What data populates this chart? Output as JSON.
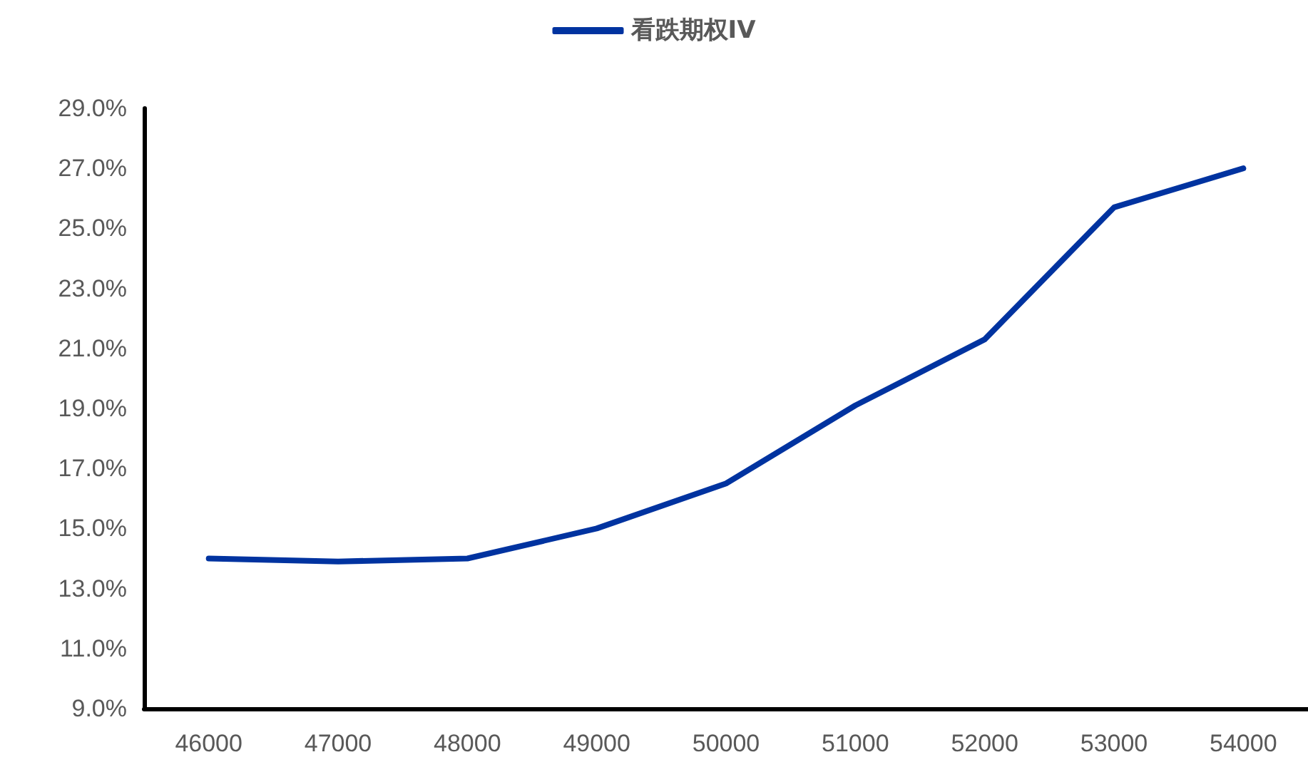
{
  "chart_data": {
    "type": "line",
    "categories": [
      "46000",
      "47000",
      "48000",
      "49000",
      "50000",
      "51000",
      "52000",
      "53000",
      "54000"
    ],
    "series": [
      {
        "name": "看跌期权IV",
        "color": "#0033a0",
        "values": [
          14.0,
          13.9,
          14.0,
          15.0,
          16.5,
          19.1,
          21.3,
          25.7,
          27.0
        ]
      }
    ],
    "ylim": [
      9,
      29
    ],
    "yticks": [
      {
        "value": 9,
        "label": "9.0%"
      },
      {
        "value": 11,
        "label": "11.0%"
      },
      {
        "value": 13,
        "label": "13.0%"
      },
      {
        "value": 15,
        "label": "15.0%"
      },
      {
        "value": 17,
        "label": "17.0%"
      },
      {
        "value": 19,
        "label": "19.0%"
      },
      {
        "value": 21,
        "label": "21.0%"
      },
      {
        "value": 23,
        "label": "23.0%"
      },
      {
        "value": 25,
        "label": "25.0%"
      },
      {
        "value": 27,
        "label": "27.0%"
      },
      {
        "value": 29,
        "label": "29.0%"
      }
    ],
    "grid": false,
    "legend": "top",
    "marker": "none",
    "line_style": "solid"
  }
}
